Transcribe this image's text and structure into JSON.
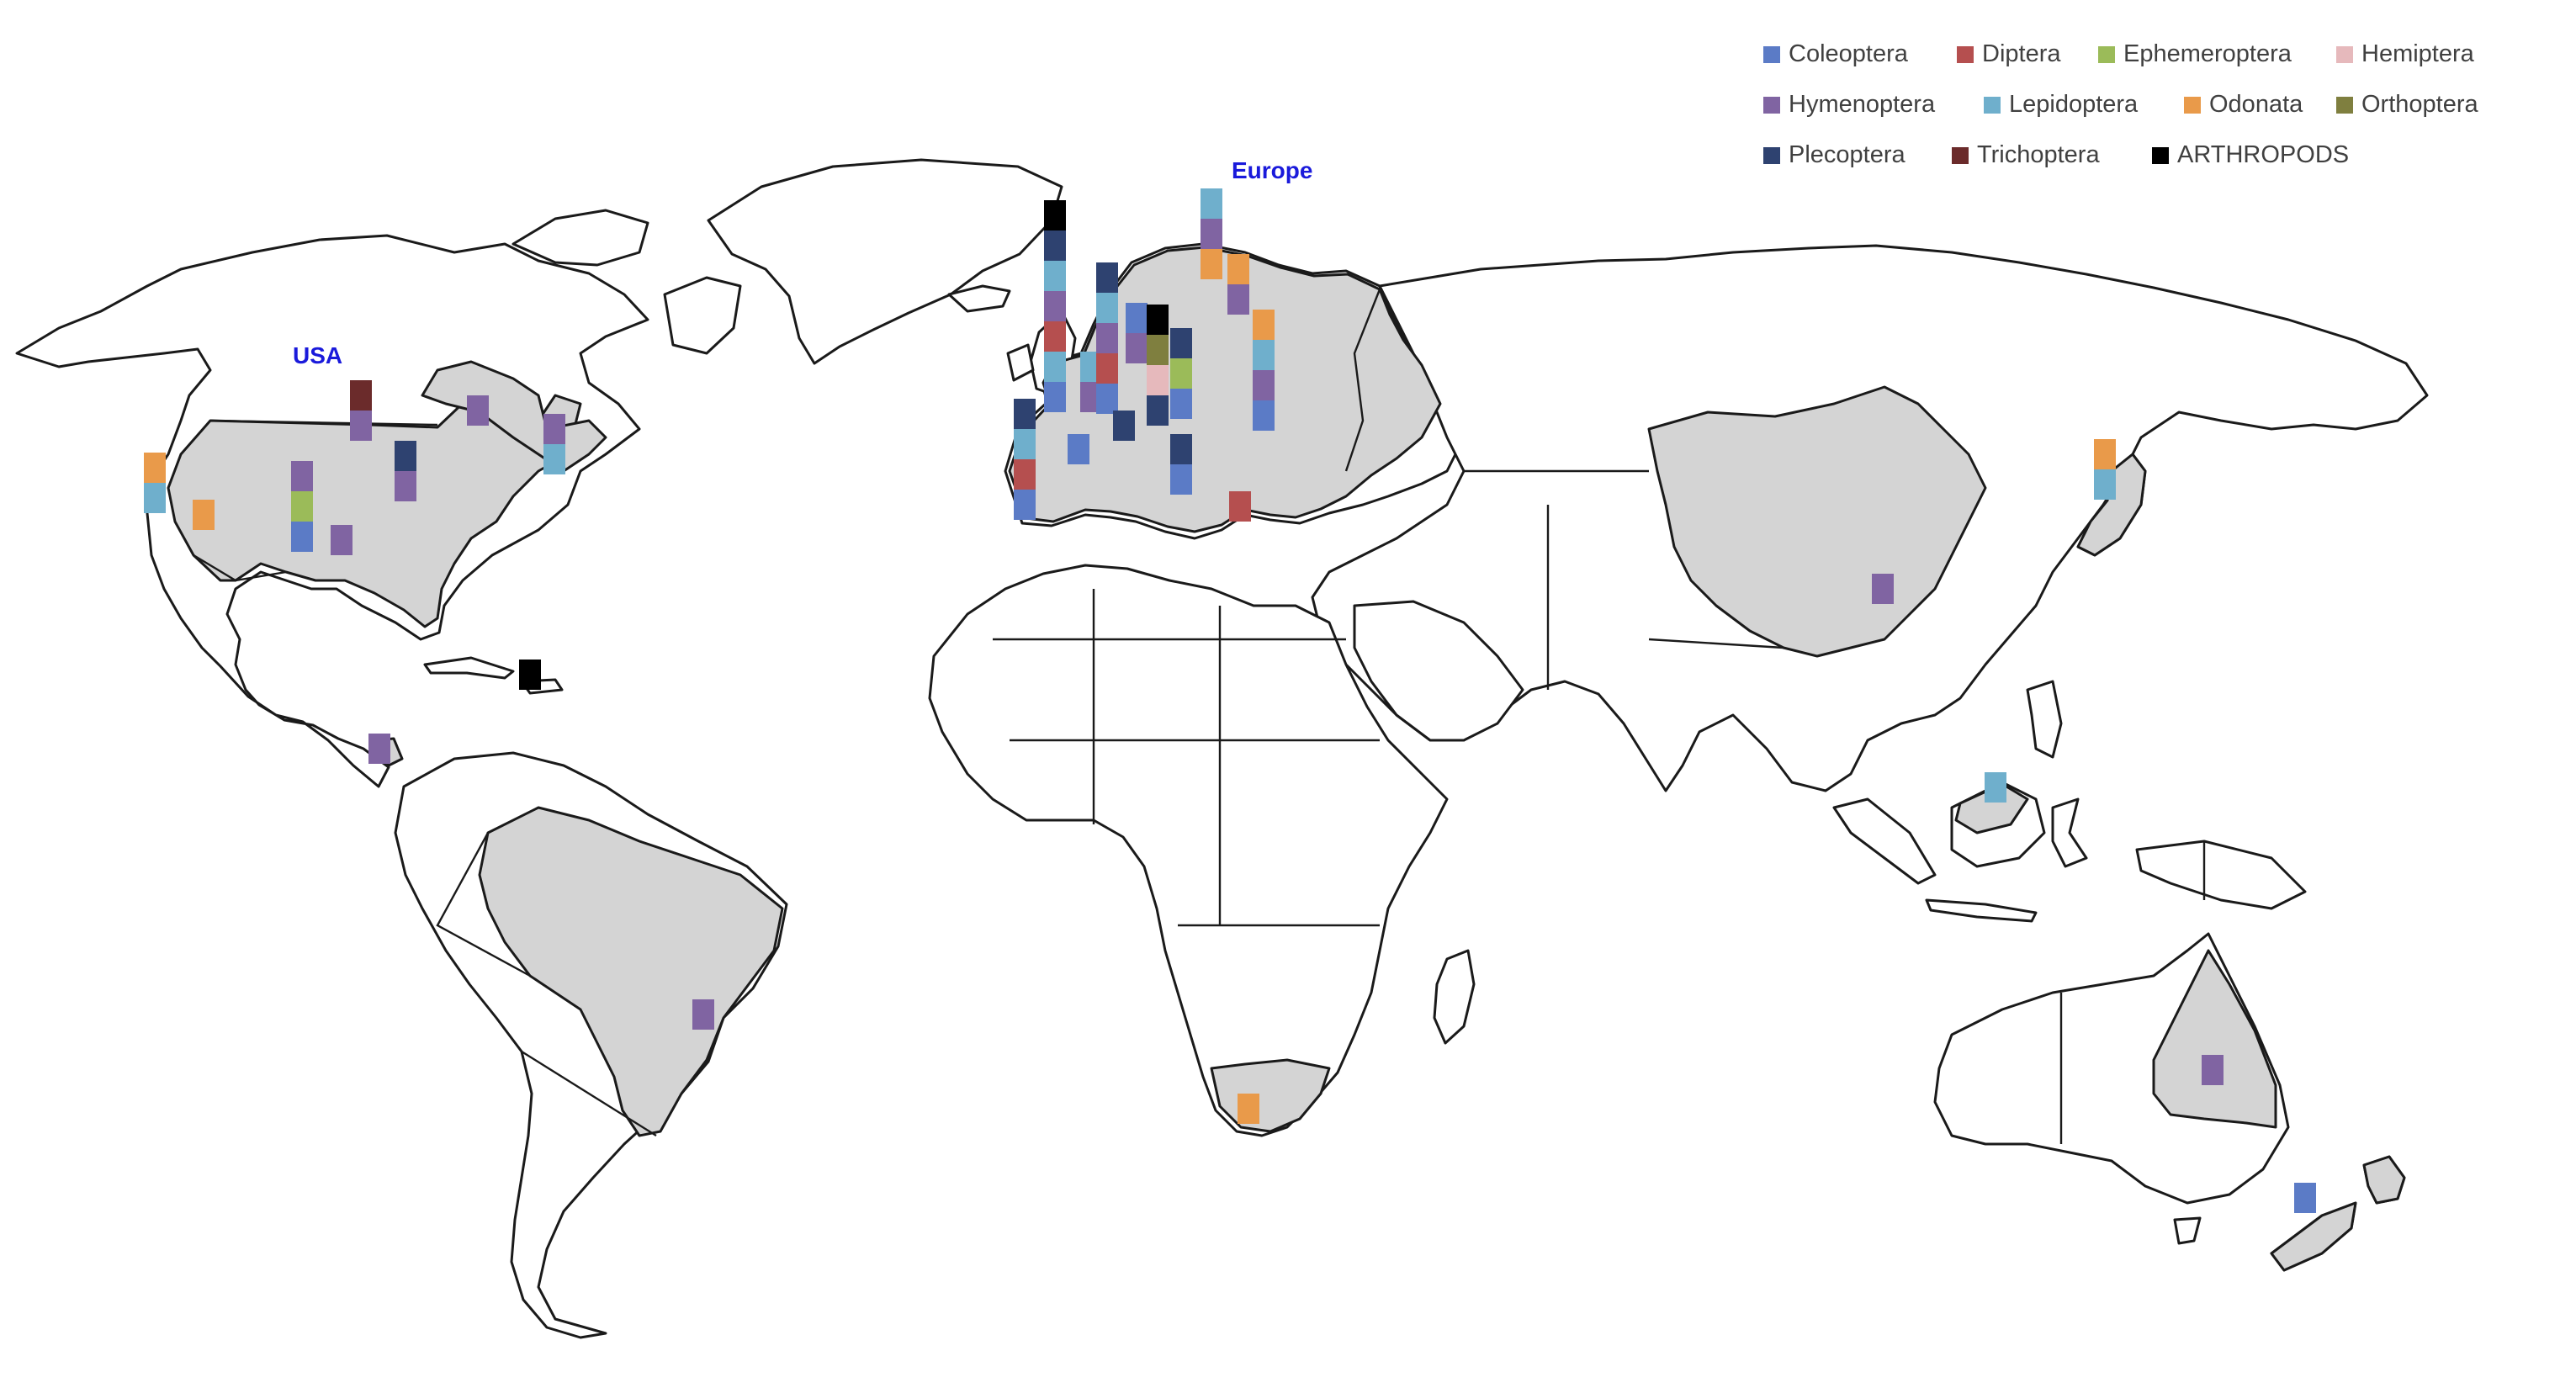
{
  "labels": {
    "usa": "USA",
    "europe": "Europe"
  },
  "label_color": "#1a1adb",
  "legend": [
    {
      "name": "Coleoptera",
      "color": "#5b7bc6"
    },
    {
      "name": "Diptera",
      "color": "#b54f4f"
    },
    {
      "name": "Ephemeroptera",
      "color": "#9bbb59"
    },
    {
      "name": "Hemiptera",
      "color": "#e6b9bc"
    },
    {
      "name": "Hymenoptera",
      "color": "#8064a2"
    },
    {
      "name": "Lepidoptera",
      "color": "#6fafcc"
    },
    {
      "name": "Odonata",
      "color": "#e99a4a"
    },
    {
      "name": "Orthoptera",
      "color": "#7f7f3f"
    },
    {
      "name": "Plecoptera",
      "color": "#2e4270"
    },
    {
      "name": "Trichoptera",
      "color": "#6b2b2b"
    },
    {
      "name": "ARTHROPODS",
      "color": "#000000"
    }
  ],
  "highlighted_regions": [
    "USA",
    "Canada (east)",
    "Europe",
    "China",
    "Japan",
    "Brazil",
    "South Africa",
    "Australia (Queensland)",
    "New Zealand",
    "Malaysia (Borneo)",
    "Costa Rica"
  ],
  "bars": [
    {
      "id": "usa-west",
      "segments": [
        "Lepidoptera",
        "Odonata"
      ]
    },
    {
      "id": "usa-california",
      "segments": [
        "Odonata"
      ]
    },
    {
      "id": "usa-rockies",
      "segments": [
        "Coleoptera",
        "Ephemeroptera",
        "Hymenoptera"
      ]
    },
    {
      "id": "usa-plains",
      "segments": [
        "Hymenoptera"
      ]
    },
    {
      "id": "usa-north",
      "segments": [
        "Hymenoptera",
        "Trichoptera"
      ]
    },
    {
      "id": "usa-greatlakes",
      "segments": [
        "Hymenoptera",
        "Plecoptera"
      ]
    },
    {
      "id": "canada-quebec",
      "segments": [
        "Hymenoptera"
      ]
    },
    {
      "id": "canada-maritimes",
      "segments": [
        "Lepidoptera",
        "Hymenoptera"
      ]
    },
    {
      "id": "caribbean",
      "segments": [
        "ARTHROPODS"
      ]
    },
    {
      "id": "costa-rica",
      "segments": [
        "Hymenoptera"
      ]
    },
    {
      "id": "brazil",
      "segments": [
        "Hymenoptera"
      ]
    },
    {
      "id": "iberia",
      "segments": [
        "Coleoptera",
        "Diptera",
        "Lepidoptera",
        "Plecoptera"
      ]
    },
    {
      "id": "france-south",
      "segments": [
        "Coleoptera"
      ]
    },
    {
      "id": "uk",
      "segments": [
        "Coleoptera",
        "Lepidoptera",
        "Diptera",
        "Hymenoptera",
        "Lepidoptera",
        "Plecoptera",
        "ARTHROPODS"
      ]
    },
    {
      "id": "benelux",
      "segments": [
        "Hymenoptera",
        "Lepidoptera"
      ]
    },
    {
      "id": "germany",
      "segments": [
        "Coleoptera",
        "Diptera",
        "Hymenoptera",
        "Lepidoptera",
        "Plecoptera"
      ]
    },
    {
      "id": "alps",
      "segments": [
        "Plecoptera"
      ]
    },
    {
      "id": "denmark",
      "segments": [
        "Hymenoptera",
        "Coleoptera"
      ]
    },
    {
      "id": "poland",
      "segments": [
        "Plecoptera",
        "Hemiptera",
        "Orthoptera",
        "ARTHROPODS"
      ]
    },
    {
      "id": "scandinavia",
      "segments": [
        "Coleoptera",
        "Ephemeroptera",
        "Plecoptera"
      ]
    },
    {
      "id": "balkans",
      "segments": [
        "Coleoptera",
        "Plecoptera"
      ]
    },
    {
      "id": "greece",
      "segments": [
        "Diptera"
      ]
    },
    {
      "id": "finland",
      "segments": [
        "Odonata",
        "Hymenoptera",
        "Lepidoptera"
      ]
    },
    {
      "id": "baltic",
      "segments": [
        "Hymenoptera",
        "Odonata"
      ]
    },
    {
      "id": "russia-west",
      "segments": [
        "Coleoptera",
        "Hymenoptera",
        "Lepidoptera",
        "Odonata"
      ]
    },
    {
      "id": "south-africa",
      "segments": [
        "Odonata"
      ]
    },
    {
      "id": "china",
      "segments": [
        "Hymenoptera"
      ]
    },
    {
      "id": "japan",
      "segments": [
        "Lepidoptera",
        "Odonata"
      ]
    },
    {
      "id": "borneo",
      "segments": [
        "Lepidoptera"
      ]
    },
    {
      "id": "australia",
      "segments": [
        "Hymenoptera"
      ]
    },
    {
      "id": "new-zealand",
      "segments": [
        "Coleoptera"
      ]
    }
  ]
}
